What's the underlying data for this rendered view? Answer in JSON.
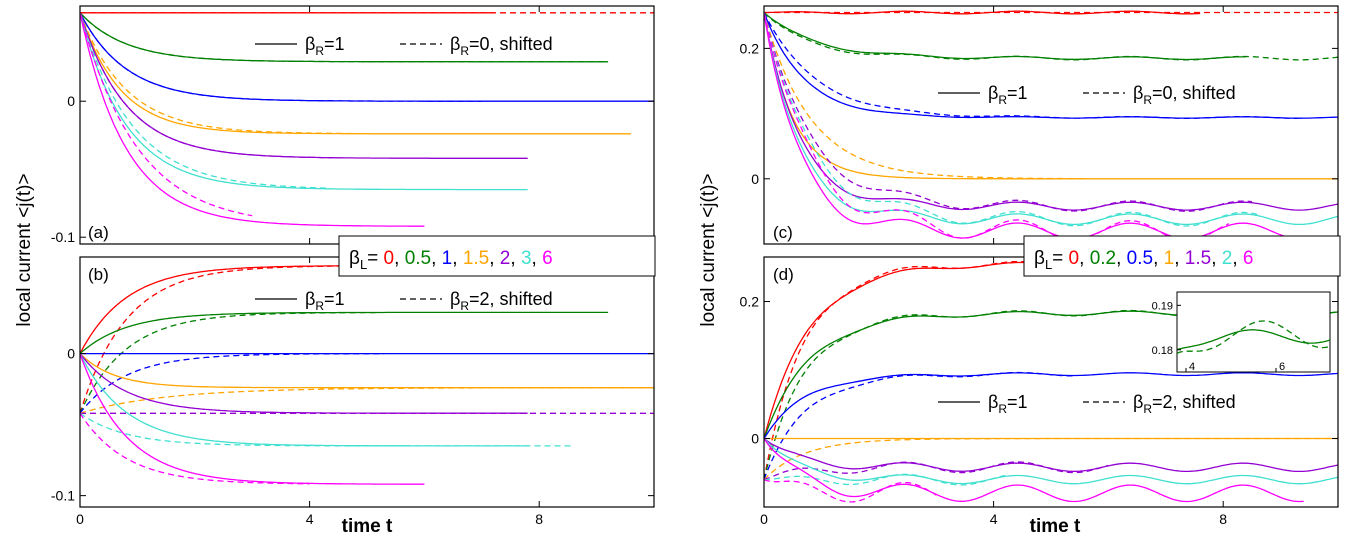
{
  "figure": {
    "xlabel": "time t",
    "ylabel": "local current <j(t)>",
    "legend_color_left": {
      "prefix_main": "β",
      "prefix_sub": "L",
      "prefix_eq": "=",
      "entries": [
        {
          "label": "0",
          "color": "#ff0000"
        },
        {
          "label": "0.5",
          "color": "#008000"
        },
        {
          "label": "1",
          "color": "#0000ff"
        },
        {
          "label": "1.5",
          "color": "#ffa500"
        },
        {
          "label": "2",
          "color": "#9400d3"
        },
        {
          "label": "3",
          "color": "#40e0d0"
        },
        {
          "label": "6",
          "color": "#ff00ff"
        }
      ]
    },
    "legend_color_right": {
      "prefix_main": "β",
      "prefix_sub": "L",
      "prefix_eq": "=",
      "entries": [
        {
          "label": "0",
          "color": "#ff0000"
        },
        {
          "label": "0.2",
          "color": "#008000"
        },
        {
          "label": "0.5",
          "color": "#0000ff"
        },
        {
          "label": "1",
          "color": "#ffa500"
        },
        {
          "label": "1.5",
          "color": "#9400d3"
        },
        {
          "label": "2",
          "color": "#40e0d0"
        },
        {
          "label": "6",
          "color": "#ff00ff"
        }
      ]
    }
  },
  "chart_data": [
    {
      "type": "line",
      "panel": "(a)",
      "xlim": [
        0,
        10
      ],
      "ylim": [
        -0.105,
        0.07
      ],
      "xticks": [
        0,
        4,
        8
      ],
      "xticklabels": [
        "",
        "",
        ""
      ],
      "yticks": [
        0,
        -0.1
      ],
      "yticklabels": [
        "0",
        "-0.1"
      ],
      "legend": [
        {
          "main": "β",
          "sub": "R",
          "rest": "=1",
          "style": "solid"
        },
        {
          "main": "β",
          "sub": "R",
          "rest": "=0, shifted",
          "style": "dashed"
        }
      ],
      "start": 0.065,
      "series": [
        {
          "color": "#ff0000",
          "final": 0.065,
          "tau": 0.8,
          "osc": 0,
          "tend": 7.2,
          "dshift": 0,
          "dtau": 0,
          "dtend": 10
        },
        {
          "color": "#008000",
          "final": 0.029,
          "tau": 0.8,
          "osc": 0,
          "tend": 9.2,
          "dshift": 0.029,
          "dtau": 0.8,
          "dtend": 9.2
        },
        {
          "color": "#0000ff",
          "final": 0.0,
          "tau": 0.8,
          "osc": 0,
          "tend": 10,
          "dshift": 0.0,
          "dtau": 0.8,
          "dtend": 7.0
        },
        {
          "color": "#ffa500",
          "final": -0.024,
          "tau": 0.7,
          "osc": 0,
          "tend": 9.6,
          "dshift": -0.024,
          "dtau": 0.8,
          "dtend": 4.8
        },
        {
          "color": "#9400d3",
          "final": -0.042,
          "tau": 0.8,
          "osc": 0,
          "tend": 7.8,
          "dshift": -0.042,
          "dtau": 0.8,
          "dtend": 4.4
        },
        {
          "color": "#40e0d0",
          "final": -0.065,
          "tau": 0.8,
          "osc": 0,
          "tend": 7.8,
          "dshift": -0.065,
          "dtau": 0.9,
          "dtend": 4.3
        },
        {
          "color": "#ff00ff",
          "final": -0.092,
          "tau": 0.8,
          "osc": 0,
          "tend": 6.0,
          "dshift": -0.092,
          "dtau": 1.0,
          "dtend": 3.0
        }
      ]
    },
    {
      "type": "line",
      "panel": "(b)",
      "xlim": [
        0,
        10
      ],
      "ylim": [
        -0.108,
        0.068
      ],
      "xticks": [
        0,
        4,
        8
      ],
      "xticklabels": [
        "0",
        "4",
        "8"
      ],
      "yticks": [
        0,
        -0.1
      ],
      "yticklabels": [
        "0",
        "-0.1"
      ],
      "legend": [
        {
          "main": "β",
          "sub": "R",
          "rest": "=1",
          "style": "solid"
        },
        {
          "main": "β",
          "sub": "R",
          "rest": "=2, shifted",
          "style": "dashed"
        }
      ],
      "start": 0.0,
      "dstart": -0.042,
      "series": [
        {
          "color": "#ff0000",
          "final": 0.062,
          "tau": 0.8,
          "osc": 0,
          "tend": 7.2,
          "dshift": 0.062,
          "dtau": 0.8,
          "dtend": 5.5
        },
        {
          "color": "#008000",
          "final": 0.029,
          "tau": 0.8,
          "osc": 0,
          "tend": 9.2,
          "dshift": 0.029,
          "dtau": 0.8,
          "dtend": 5.2
        },
        {
          "color": "#0000ff",
          "final": 0.0,
          "tau": 0.8,
          "osc": 0,
          "tend": 10,
          "dshift": 0.0,
          "dtau": 0.8,
          "dtend": 5.3
        },
        {
          "color": "#ffa500",
          "final": -0.024,
          "tau": 0.6,
          "osc": 0,
          "tend": 10,
          "dshift": -0.024,
          "dtau": 1.5,
          "dtend": 10
        },
        {
          "color": "#9400d3",
          "final": -0.042,
          "tau": 0.8,
          "osc": 0,
          "tend": 7.8,
          "dshift": -0.042,
          "dtau": 0.8,
          "dtend": 10
        },
        {
          "color": "#40e0d0",
          "final": -0.065,
          "tau": 0.8,
          "osc": 0,
          "tend": 7.8,
          "dshift": -0.065,
          "dtau": 0.8,
          "dtend": 8.6
        },
        {
          "color": "#ff00ff",
          "final": -0.092,
          "tau": 0.8,
          "osc": 0,
          "tend": 6.0,
          "dshift": -0.092,
          "dtau": 0.8,
          "dtend": 4.0
        }
      ]
    },
    {
      "type": "line",
      "panel": "(c)",
      "xlim": [
        0,
        10
      ],
      "ylim": [
        -0.1,
        0.265
      ],
      "xticks": [
        0,
        4,
        8
      ],
      "xticklabels": [
        "",
        "",
        ""
      ],
      "yticks": [
        0,
        0.2
      ],
      "yticklabels": [
        "0",
        "0.2"
      ],
      "legend": [
        {
          "main": "β",
          "sub": "R",
          "rest": "=1",
          "style": "solid"
        },
        {
          "main": "β",
          "sub": "R",
          "rest": "=0, shifted",
          "style": "dashed"
        }
      ],
      "start": 0.255,
      "series": [
        {
          "color": "#ff0000",
          "final": 0.255,
          "tau": 0.9,
          "osc": 0.002,
          "tend": 7.6,
          "dshift": 0,
          "dtau": 0,
          "dtend": 10
        },
        {
          "color": "#008000",
          "final": 0.185,
          "tau": 0.9,
          "osc": 0.002,
          "tend": 8.4,
          "dshift": 0.185,
          "dtau": 0.8,
          "dtend": 10
        },
        {
          "color": "#0000ff",
          "final": 0.094,
          "tau": 0.7,
          "osc": 0.001,
          "tend": 10,
          "dshift": 0.094,
          "dtau": 0.9,
          "dtend": 9.3
        },
        {
          "color": "#ffa500",
          "final": 0.0,
          "tau": 0.5,
          "osc": 0,
          "tend": 10,
          "dshift": 0.0,
          "dtau": 0.8,
          "dtend": 5.6
        },
        {
          "color": "#9400d3",
          "final": -0.042,
          "tau": 0.6,
          "osc": 0.006,
          "tend": 10,
          "dshift": -0.042,
          "dtau": 0.8,
          "dtend": 8.5
        },
        {
          "color": "#40e0d0",
          "final": -0.062,
          "tau": 0.6,
          "osc": 0.008,
          "tend": 10,
          "dshift": -0.062,
          "dtau": 0.8,
          "dtend": 8.6
        },
        {
          "color": "#ff00ff",
          "final": -0.08,
          "tau": 0.6,
          "osc": 0.012,
          "tend": 9.4,
          "dshift": -0.08,
          "dtau": 0.8,
          "dtend": 8.1
        }
      ]
    },
    {
      "type": "line",
      "panel": "(d)",
      "xlim": [
        0,
        10
      ],
      "ylim": [
        -0.1,
        0.265
      ],
      "xticks": [
        0,
        4,
        8
      ],
      "xticklabels": [
        "0",
        "4",
        "8"
      ],
      "yticks": [
        0,
        0.2
      ],
      "yticklabels": [
        "0",
        "0.2"
      ],
      "legend": [
        {
          "main": "β",
          "sub": "R",
          "rest": "=1",
          "style": "solid"
        },
        {
          "main": "β",
          "sub": "R",
          "rest": "=2, shifted",
          "style": "dashed"
        }
      ],
      "start": 0.0,
      "dstart": -0.06,
      "series": [
        {
          "color": "#ff0000",
          "final": 0.255,
          "tau": 0.8,
          "osc": 0.003,
          "tend": 7.6,
          "dshift": 0.255,
          "dtau": 0.7,
          "dtend": 7.6
        },
        {
          "color": "#008000",
          "final": 0.183,
          "tau": 0.8,
          "osc": 0.003,
          "tend": 10,
          "dshift": 0.183,
          "dtau": 0.7,
          "dtend": 10
        },
        {
          "color": "#0000ff",
          "final": 0.094,
          "tau": 0.7,
          "osc": 0.002,
          "tend": 10,
          "dshift": 0.094,
          "dtau": 0.7,
          "dtend": 5.4
        },
        {
          "color": "#ffa500",
          "final": 0.0,
          "tau": 0.5,
          "osc": 0,
          "tend": 10,
          "dshift": 0.0,
          "dtau": 0.7,
          "dtend": 10
        },
        {
          "color": "#9400d3",
          "final": -0.042,
          "tau": 0.6,
          "osc": 0.006,
          "tend": 10,
          "dshift": -0.042,
          "dtau": 0.6,
          "dtend": 6.0
        },
        {
          "color": "#40e0d0",
          "final": -0.06,
          "tau": 0.6,
          "osc": 0.006,
          "tend": 10,
          "dshift": -0.06,
          "dtau": 0.6,
          "dtend": 4.2
        },
        {
          "color": "#ff00ff",
          "final": -0.08,
          "tau": 0.6,
          "osc": 0.012,
          "tend": 9.4,
          "dshift": -0.08,
          "dtau": 0.6,
          "dtend": 3.0
        }
      ],
      "inset": {
        "xlim": [
          3.8,
          7.2
        ],
        "ylim": [
          0.175,
          0.193
        ],
        "xticks": [
          4,
          6
        ],
        "xticklabels": [
          "4",
          "6"
        ],
        "yticks": [
          0.18,
          0.19
        ],
        "yticklabels": [
          "0.18",
          "0.19"
        ]
      }
    }
  ]
}
